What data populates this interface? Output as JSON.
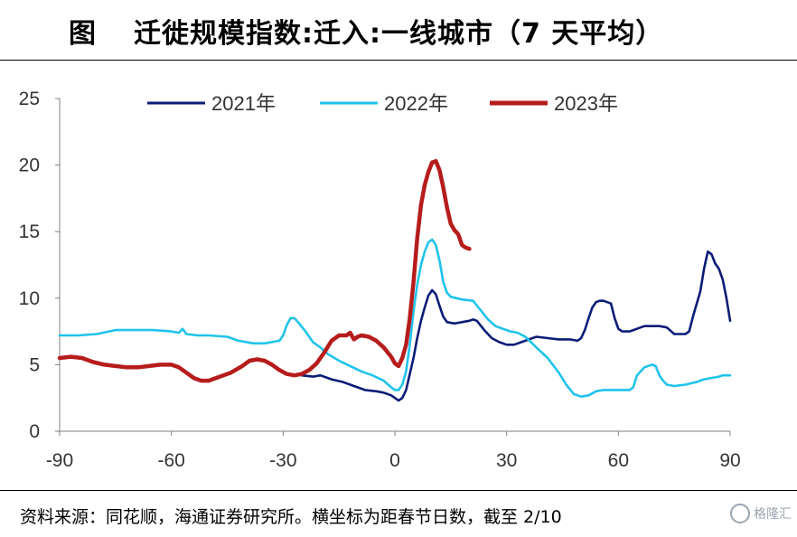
{
  "header": {
    "prefix": "图",
    "title": "迁徙规模指数:迁入:一线城市（7 天平均）"
  },
  "footer": {
    "source": "资料来源：同花顺，海通证券研究所。横坐标为距春节日数，截至 2/10"
  },
  "watermark": {
    "text": "格隆汇"
  },
  "chart_data": {
    "type": "line",
    "title": "迁徙规模指数:迁入:一线城市（7 天平均）",
    "xlabel": "",
    "ylabel": "",
    "xlim": [
      -90,
      90
    ],
    "ylim": [
      0,
      25
    ],
    "x_ticks": [
      -90,
      -60,
      -30,
      0,
      30,
      60,
      90
    ],
    "y_ticks": [
      0,
      5,
      10,
      15,
      20,
      25
    ],
    "grid": false,
    "legend": "top",
    "series": [
      {
        "name": "2021年",
        "color": "#0b1c78",
        "points": [
          [
            -25,
            4.2
          ],
          [
            -22,
            4.1
          ],
          [
            -20,
            4.2
          ],
          [
            -17,
            3.9
          ],
          [
            -14,
            3.7
          ],
          [
            -11,
            3.4
          ],
          [
            -8,
            3.1
          ],
          [
            -5,
            3.0
          ],
          [
            -3,
            2.9
          ],
          [
            -1,
            2.7
          ],
          [
            0,
            2.5
          ],
          [
            1,
            2.3
          ],
          [
            2,
            2.5
          ],
          [
            3,
            3.1
          ],
          [
            4,
            4.3
          ],
          [
            5,
            5.5
          ],
          [
            6,
            7.0
          ],
          [
            7,
            8.3
          ],
          [
            8,
            9.3
          ],
          [
            9,
            10.2
          ],
          [
            10,
            10.6
          ],
          [
            11,
            10.3
          ],
          [
            12,
            9.4
          ],
          [
            13,
            8.6
          ],
          [
            14,
            8.2
          ],
          [
            16,
            8.1
          ],
          [
            18,
            8.2
          ],
          [
            20,
            8.3
          ],
          [
            21,
            8.4
          ],
          [
            22,
            8.3
          ],
          [
            24,
            7.6
          ],
          [
            26,
            7.0
          ],
          [
            28,
            6.7
          ],
          [
            30,
            6.5
          ],
          [
            32,
            6.5
          ],
          [
            35,
            6.8
          ],
          [
            38,
            7.1
          ],
          [
            41,
            7.0
          ],
          [
            44,
            6.9
          ],
          [
            47,
            6.9
          ],
          [
            49,
            6.8
          ],
          [
            50,
            7.0
          ],
          [
            51,
            7.6
          ],
          [
            52,
            8.5
          ],
          [
            53,
            9.3
          ],
          [
            54,
            9.7
          ],
          [
            55,
            9.8
          ],
          [
            56,
            9.8
          ],
          [
            57,
            9.7
          ],
          [
            58,
            9.6
          ],
          [
            59,
            8.5
          ],
          [
            60,
            7.7
          ],
          [
            61,
            7.5
          ],
          [
            63,
            7.5
          ],
          [
            65,
            7.7
          ],
          [
            67,
            7.9
          ],
          [
            69,
            7.9
          ],
          [
            71,
            7.9
          ],
          [
            73,
            7.8
          ],
          [
            75,
            7.3
          ],
          [
            77,
            7.3
          ],
          [
            78,
            7.3
          ],
          [
            79,
            7.5
          ],
          [
            80,
            8.6
          ],
          [
            82,
            10.5
          ],
          [
            83,
            12.2
          ],
          [
            84,
            13.5
          ],
          [
            85,
            13.3
          ],
          [
            86,
            12.6
          ],
          [
            87,
            12.2
          ],
          [
            88,
            11.4
          ],
          [
            89,
            10.0
          ],
          [
            90,
            8.3
          ]
        ]
      },
      {
        "name": "2022年",
        "color": "#1fc3ec",
        "points": [
          [
            -90,
            7.2
          ],
          [
            -85,
            7.2
          ],
          [
            -80,
            7.3
          ],
          [
            -75,
            7.6
          ],
          [
            -70,
            7.6
          ],
          [
            -65,
            7.6
          ],
          [
            -60,
            7.5
          ],
          [
            -58,
            7.4
          ],
          [
            -57,
            7.7
          ],
          [
            -56,
            7.3
          ],
          [
            -53,
            7.2
          ],
          [
            -50,
            7.2
          ],
          [
            -45,
            7.1
          ],
          [
            -42,
            6.8
          ],
          [
            -38,
            6.6
          ],
          [
            -35,
            6.6
          ],
          [
            -31,
            6.8
          ],
          [
            -30,
            7.2
          ],
          [
            -29,
            8.0
          ],
          [
            -28,
            8.5
          ],
          [
            -27,
            8.5
          ],
          [
            -26,
            8.2
          ],
          [
            -24,
            7.5
          ],
          [
            -22,
            6.7
          ],
          [
            -20,
            6.3
          ],
          [
            -18,
            5.8
          ],
          [
            -15,
            5.3
          ],
          [
            -12,
            4.9
          ],
          [
            -9,
            4.5
          ],
          [
            -6,
            4.2
          ],
          [
            -3,
            3.8
          ],
          [
            -1,
            3.3
          ],
          [
            0,
            3.1
          ],
          [
            1,
            3.1
          ],
          [
            2,
            3.5
          ],
          [
            3,
            4.5
          ],
          [
            4,
            6.5
          ],
          [
            5,
            9.0
          ],
          [
            6,
            11.0
          ],
          [
            7,
            12.5
          ],
          [
            8,
            13.5
          ],
          [
            9,
            14.2
          ],
          [
            10,
            14.4
          ],
          [
            11,
            14.0
          ],
          [
            12,
            12.8
          ],
          [
            13,
            11.2
          ],
          [
            14,
            10.4
          ],
          [
            15,
            10.1
          ],
          [
            18,
            9.9
          ],
          [
            21,
            9.8
          ],
          [
            23,
            9.1
          ],
          [
            25,
            8.4
          ],
          [
            27,
            7.9
          ],
          [
            29,
            7.7
          ],
          [
            31,
            7.5
          ],
          [
            33,
            7.4
          ],
          [
            35,
            7.1
          ],
          [
            38,
            6.3
          ],
          [
            41,
            5.5
          ],
          [
            44,
            4.4
          ],
          [
            46,
            3.5
          ],
          [
            48,
            2.8
          ],
          [
            50,
            2.6
          ],
          [
            52,
            2.7
          ],
          [
            54,
            3.0
          ],
          [
            56,
            3.1
          ],
          [
            58,
            3.1
          ],
          [
            61,
            3.1
          ],
          [
            63,
            3.1
          ],
          [
            64,
            3.3
          ],
          [
            65,
            4.2
          ],
          [
            67,
            4.8
          ],
          [
            69,
            5.0
          ],
          [
            70,
            4.9
          ],
          [
            71,
            4.2
          ],
          [
            72,
            3.8
          ],
          [
            73,
            3.5
          ],
          [
            75,
            3.4
          ],
          [
            78,
            3.5
          ],
          [
            81,
            3.7
          ],
          [
            83,
            3.9
          ],
          [
            85,
            4.0
          ],
          [
            87,
            4.1
          ],
          [
            88,
            4.2
          ],
          [
            90,
            4.2
          ]
        ]
      },
      {
        "name": "2023年",
        "color": "#b71c1c",
        "points": [
          [
            -90,
            5.5
          ],
          [
            -87,
            5.6
          ],
          [
            -84,
            5.5
          ],
          [
            -81,
            5.2
          ],
          [
            -78,
            5.0
          ],
          [
            -75,
            4.9
          ],
          [
            -72,
            4.8
          ],
          [
            -69,
            4.8
          ],
          [
            -66,
            4.9
          ],
          [
            -63,
            5.0
          ],
          [
            -60,
            5.0
          ],
          [
            -58,
            4.8
          ],
          [
            -56,
            4.4
          ],
          [
            -54,
            4.0
          ],
          [
            -52,
            3.8
          ],
          [
            -50,
            3.8
          ],
          [
            -47,
            4.1
          ],
          [
            -44,
            4.4
          ],
          [
            -41,
            4.9
          ],
          [
            -39,
            5.3
          ],
          [
            -37,
            5.4
          ],
          [
            -35,
            5.3
          ],
          [
            -33,
            5.0
          ],
          [
            -31,
            4.6
          ],
          [
            -29,
            4.3
          ],
          [
            -27,
            4.2
          ],
          [
            -25,
            4.3
          ],
          [
            -23,
            4.6
          ],
          [
            -21,
            5.1
          ],
          [
            -19,
            5.9
          ],
          [
            -17,
            6.8
          ],
          [
            -15,
            7.2
          ],
          [
            -13,
            7.2
          ],
          [
            -12,
            7.4
          ],
          [
            -11,
            6.9
          ],
          [
            -10,
            7.1
          ],
          [
            -9,
            7.2
          ],
          [
            -7,
            7.1
          ],
          [
            -5,
            6.8
          ],
          [
            -3,
            6.3
          ],
          [
            -1,
            5.6
          ],
          [
            0,
            5.1
          ],
          [
            1,
            4.9
          ],
          [
            2,
            5.5
          ],
          [
            3,
            6.5
          ],
          [
            4,
            8.5
          ],
          [
            5,
            11.2
          ],
          [
            6,
            14.5
          ],
          [
            7,
            17.0
          ],
          [
            8,
            18.5
          ],
          [
            9,
            19.5
          ],
          [
            10,
            20.2
          ],
          [
            11,
            20.3
          ],
          [
            12,
            19.6
          ],
          [
            13,
            18.3
          ],
          [
            14,
            16.8
          ],
          [
            15,
            15.6
          ],
          [
            16,
            15.1
          ],
          [
            17,
            14.8
          ],
          [
            18,
            14.0
          ],
          [
            19,
            13.8
          ],
          [
            20,
            13.7
          ]
        ]
      }
    ]
  }
}
